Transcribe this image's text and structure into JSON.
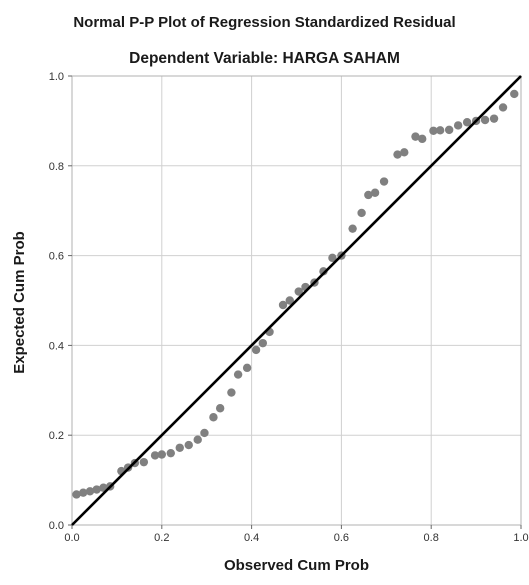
{
  "chart_data": {
    "type": "scatter",
    "title": "Normal P-P Plot of Regression Standardized Residual",
    "subtitle": "Dependent Variable: HARGA SAHAM",
    "xlabel": "Observed Cum Prob",
    "ylabel": "Expected Cum Prob",
    "xlim": [
      0,
      1
    ],
    "ylim": [
      0,
      1
    ],
    "xticks": [
      "0.0",
      "0.2",
      "0.4",
      "0.6",
      "0.8",
      "1.0"
    ],
    "yticks": [
      "0.0",
      "0.2",
      "0.4",
      "0.6",
      "0.8",
      "1.0"
    ],
    "grid": true,
    "legend": "none",
    "colors": {
      "points": "#808080",
      "reference_line": "#000000",
      "grid": "#d0d0d0",
      "frame": "#b0b0b0"
    },
    "reference_line": {
      "from": [
        0,
        0
      ],
      "to": [
        1,
        1
      ]
    },
    "points": [
      {
        "x": 0.01,
        "y": 0.068
      },
      {
        "x": 0.025,
        "y": 0.072
      },
      {
        "x": 0.04,
        "y": 0.075
      },
      {
        "x": 0.055,
        "y": 0.079
      },
      {
        "x": 0.07,
        "y": 0.083
      },
      {
        "x": 0.085,
        "y": 0.086
      },
      {
        "x": 0.11,
        "y": 0.12
      },
      {
        "x": 0.125,
        "y": 0.128
      },
      {
        "x": 0.14,
        "y": 0.138
      },
      {
        "x": 0.16,
        "y": 0.14
      },
      {
        "x": 0.185,
        "y": 0.155
      },
      {
        "x": 0.2,
        "y": 0.157
      },
      {
        "x": 0.22,
        "y": 0.16
      },
      {
        "x": 0.24,
        "y": 0.172
      },
      {
        "x": 0.26,
        "y": 0.178
      },
      {
        "x": 0.28,
        "y": 0.19
      },
      {
        "x": 0.295,
        "y": 0.205
      },
      {
        "x": 0.315,
        "y": 0.24
      },
      {
        "x": 0.33,
        "y": 0.26
      },
      {
        "x": 0.355,
        "y": 0.295
      },
      {
        "x": 0.37,
        "y": 0.335
      },
      {
        "x": 0.39,
        "y": 0.35
      },
      {
        "x": 0.41,
        "y": 0.39
      },
      {
        "x": 0.425,
        "y": 0.405
      },
      {
        "x": 0.44,
        "y": 0.43
      },
      {
        "x": 0.47,
        "y": 0.49
      },
      {
        "x": 0.485,
        "y": 0.5
      },
      {
        "x": 0.505,
        "y": 0.52
      },
      {
        "x": 0.52,
        "y": 0.53
      },
      {
        "x": 0.54,
        "y": 0.54
      },
      {
        "x": 0.56,
        "y": 0.565
      },
      {
        "x": 0.58,
        "y": 0.595
      },
      {
        "x": 0.6,
        "y": 0.6
      },
      {
        "x": 0.625,
        "y": 0.66
      },
      {
        "x": 0.645,
        "y": 0.695
      },
      {
        "x": 0.66,
        "y": 0.735
      },
      {
        "x": 0.675,
        "y": 0.74
      },
      {
        "x": 0.695,
        "y": 0.765
      },
      {
        "x": 0.725,
        "y": 0.825
      },
      {
        "x": 0.74,
        "y": 0.83
      },
      {
        "x": 0.765,
        "y": 0.865
      },
      {
        "x": 0.78,
        "y": 0.86
      },
      {
        "x": 0.805,
        "y": 0.878
      },
      {
        "x": 0.82,
        "y": 0.879
      },
      {
        "x": 0.84,
        "y": 0.88
      },
      {
        "x": 0.86,
        "y": 0.89
      },
      {
        "x": 0.88,
        "y": 0.897
      },
      {
        "x": 0.9,
        "y": 0.9
      },
      {
        "x": 0.92,
        "y": 0.902
      },
      {
        "x": 0.94,
        "y": 0.905
      },
      {
        "x": 0.96,
        "y": 0.93
      },
      {
        "x": 0.985,
        "y": 0.96
      }
    ]
  }
}
